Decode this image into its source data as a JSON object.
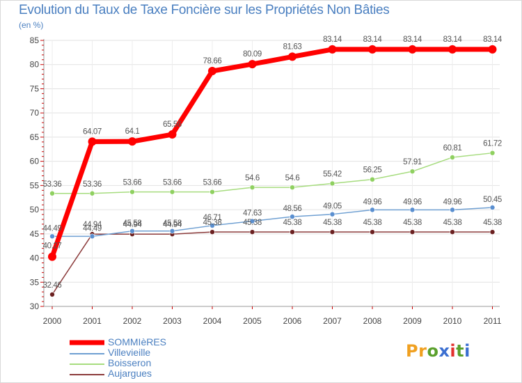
{
  "title": "Evolution du Taux de Taxe Foncière sur les Propriétés Non Bâties",
  "subtitle": "(en %)",
  "logo": {
    "text": "Proxiti",
    "letters": [
      "P",
      "r",
      "o",
      "x",
      "i",
      "t",
      "i"
    ],
    "colors": [
      "#f0a020",
      "#f0a020",
      "#5aa02c",
      "#3b6fd1",
      "#e3312d",
      "#5aa02c",
      "#3b6fd1"
    ]
  },
  "chart_data": {
    "type": "line",
    "title": "Evolution du Taux de Taxe Foncière sur les Propriétés Non Bâties",
    "ylabel": "(en %)",
    "xlabel": "",
    "ylim": [
      30,
      85
    ],
    "yticks": [
      "30",
      "35",
      "40",
      "45",
      "50",
      "55",
      "60",
      "65",
      "70",
      "75",
      "80",
      "85"
    ],
    "categories": [
      "2000",
      "2001",
      "2002",
      "2003",
      "2004",
      "2005",
      "2006",
      "2007",
      "2008",
      "2009",
      "2010",
      "2011"
    ],
    "series": [
      {
        "name": "SOMMIèRES",
        "color": "#ff0000",
        "width": 7,
        "marker": 6,
        "values": [
          40.27,
          64.07,
          64.1,
          65.56,
          78.66,
          80.09,
          81.63,
          83.14,
          83.14,
          83.14,
          83.14,
          83.14
        ],
        "labels": [
          "40.27",
          "64.07",
          "64.1",
          "65.56",
          "78.66",
          "80.09",
          "81.63",
          "83.14",
          "83.14",
          "83.14",
          "83.14",
          "83.14"
        ]
      },
      {
        "name": "Villevieille",
        "color": "#6e9fd2",
        "width": 1.5,
        "marker": 3.5,
        "markerFill": "#5a8fd0",
        "values": [
          44.49,
          44.49,
          45.58,
          45.58,
          46.71,
          47.63,
          48.56,
          49.05,
          49.96,
          49.96,
          49.96,
          50.45
        ],
        "labels": [
          "44.49",
          "44.49",
          "45.58",
          "45.58",
          "46.71",
          "47.63",
          "48.56",
          "49.05",
          "49.96",
          "49.96",
          "49.96",
          "50.45"
        ]
      },
      {
        "name": "Boisseron",
        "color": "#a6dc7e",
        "width": 1.5,
        "marker": 3.5,
        "markerFill": "#8fd060",
        "values": [
          53.36,
          53.36,
          53.66,
          53.66,
          53.66,
          54.6,
          54.6,
          55.42,
          56.25,
          57.91,
          60.81,
          61.72
        ],
        "labels": [
          "53.36",
          "53.36",
          "53.66",
          "53.66",
          "53.66",
          "54.6",
          "54.6",
          "55.42",
          "56.25",
          "57.91",
          "60.81",
          "61.72"
        ]
      },
      {
        "name": "Aujargues",
        "color": "#8b3a3a",
        "width": 1.5,
        "marker": 3.5,
        "markerFill": "#6b2020",
        "values": [
          32.46,
          44.94,
          44.94,
          44.94,
          45.38,
          45.38,
          45.38,
          45.38,
          45.38,
          45.38,
          45.38,
          45.38
        ],
        "labels": [
          "32.46",
          "44.94",
          "44.94",
          "44.94",
          "45.38",
          "45.38",
          "45.38",
          "45.38",
          "45.38",
          "45.38",
          "45.38",
          "45.38"
        ]
      }
    ]
  }
}
